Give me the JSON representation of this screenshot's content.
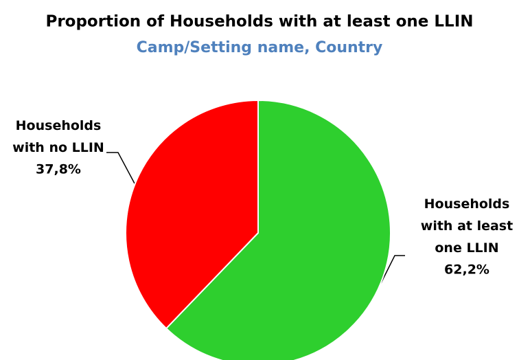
{
  "chart_data": {
    "type": "pie",
    "title": "Proportion of Households with at least one LLIN",
    "subtitle": "Camp/Setting name, Country",
    "categories": [
      "Households with at least one LLIN",
      "Households with no LLIN"
    ],
    "values": [
      62.2,
      37.8
    ],
    "value_labels": [
      "62,2%",
      "37,8%"
    ],
    "colors": [
      "#2ecf2e",
      "#ff0000"
    ]
  }
}
